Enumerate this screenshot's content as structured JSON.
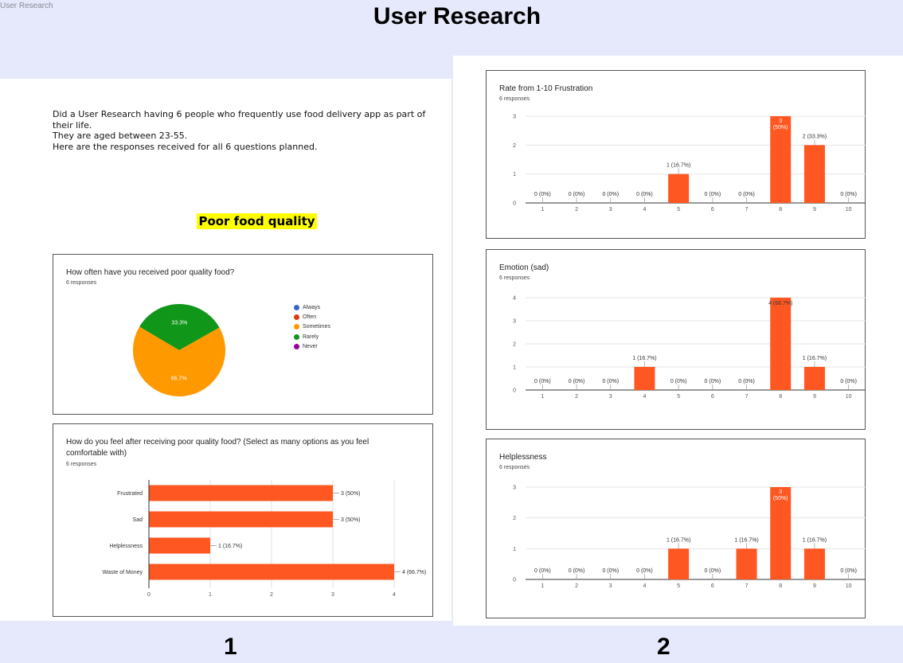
{
  "corner_label": "User Research",
  "title": "User Research",
  "page_numbers": [
    "1",
    "2"
  ],
  "intro": [
    "Did a User Research having 6 people who frequently use food delivery app as part of their life.",
    "They are aged between 23-55.",
    "Here are the responses received for all 6 questions planned."
  ],
  "section_heading": "Poor food quality",
  "colors": {
    "bar": "#ff5722",
    "pie_orange": "#ff9900",
    "pie_green": "#109618",
    "panel_bg": "#e6e9fb"
  },
  "charts": {
    "pie": {
      "title": "How often have you received poor quality food?",
      "subtitle": "6 responses",
      "legend": [
        {
          "label": "Always",
          "color": "#3366cc"
        },
        {
          "label": "Often",
          "color": "#dc3912"
        },
        {
          "label": "Sometimes",
          "color": "#ff9900"
        },
        {
          "label": "Rarely",
          "color": "#109618"
        },
        {
          "label": "Never",
          "color": "#990099"
        }
      ]
    },
    "feelings": {
      "title_line1": "How do you feel after receiving poor quality food?    (Select as many options as you feel",
      "title_line2": "comfortable with)",
      "subtitle": "6 responses"
    },
    "frustration": {
      "title": "Rate from 1-10 Frustration",
      "subtitle": "6 responses"
    },
    "emotion": {
      "title": "Emotion (sad)",
      "subtitle": "6 responses"
    },
    "helplessness": {
      "title": "Helplessness",
      "subtitle": "6 responses"
    }
  },
  "chart_data": [
    {
      "type": "pie",
      "id": "pie",
      "categories": [
        "Always",
        "Often",
        "Sometimes",
        "Rarely",
        "Never"
      ],
      "values": [
        0,
        0,
        4,
        2,
        0
      ],
      "labels": [
        "",
        "",
        "66.7%",
        "33.3%",
        ""
      ],
      "colors": [
        "#3366cc",
        "#dc3912",
        "#ff9900",
        "#109618",
        "#990099"
      ],
      "legend": "right"
    },
    {
      "type": "bar",
      "id": "feelings",
      "orientation": "horizontal",
      "categories": [
        "Frustrated",
        "Sad",
        "Helplessness",
        "Waste of Money"
      ],
      "values": [
        3,
        3,
        1,
        4
      ],
      "labels": [
        "3 (50%)",
        "3 (50%)",
        "1 (16.7%)",
        "4 (66.7%)"
      ],
      "xlim": [
        0,
        4
      ],
      "xticks": [
        "0",
        "1",
        "2",
        "3",
        "4"
      ],
      "grid": true
    },
    {
      "type": "bar",
      "id": "frustration",
      "categories": [
        "1",
        "2",
        "3",
        "4",
        "5",
        "6",
        "7",
        "8",
        "9",
        "10"
      ],
      "values": [
        0,
        0,
        0,
        0,
        1,
        0,
        0,
        3,
        2,
        0
      ],
      "labels": [
        "0 (0%)",
        "0 (0%)",
        "0 (0%)",
        "0 (0%)",
        "1 (16.7%)",
        "0 (0%)",
        "0 (0%)",
        "3|(50%)",
        "2 (33.3%)",
        "0 (0%)"
      ],
      "ylim": [
        0,
        3
      ],
      "yticks": [
        "0",
        "1",
        "2",
        "3"
      ],
      "grid": true
    },
    {
      "type": "bar",
      "id": "emotion",
      "categories": [
        "1",
        "2",
        "3",
        "4",
        "5",
        "6",
        "7",
        "8",
        "9",
        "10"
      ],
      "values": [
        0,
        0,
        0,
        1,
        0,
        0,
        0,
        4,
        1,
        0
      ],
      "labels": [
        "0 (0%)",
        "0 (0%)",
        "0 (0%)",
        "1 (16.7%)",
        "0 (0%)",
        "0 (0%)",
        "0 (0%)",
        "4 (66.7%)",
        "1 (16.7%)",
        "0 (0%)"
      ],
      "ylim": [
        0,
        4
      ],
      "yticks": [
        "0",
        "1",
        "2",
        "3",
        "4"
      ],
      "grid": true
    },
    {
      "type": "bar",
      "id": "helplessness",
      "categories": [
        "1",
        "2",
        "3",
        "4",
        "5",
        "6",
        "7",
        "8",
        "9",
        "10"
      ],
      "values": [
        0,
        0,
        0,
        0,
        1,
        0,
        1,
        3,
        1,
        0
      ],
      "labels": [
        "0 (0%)",
        "0 (0%)",
        "0 (0%)",
        "0 (0%)",
        "1 (16.7%)",
        "0 (0%)",
        "1 (16.7%)",
        "3|(50%)",
        "1 (16.7%)",
        "0 (0%)"
      ],
      "ylim": [
        0,
        3
      ],
      "yticks": [
        "0",
        "1",
        "2",
        "3"
      ],
      "grid": true
    }
  ]
}
